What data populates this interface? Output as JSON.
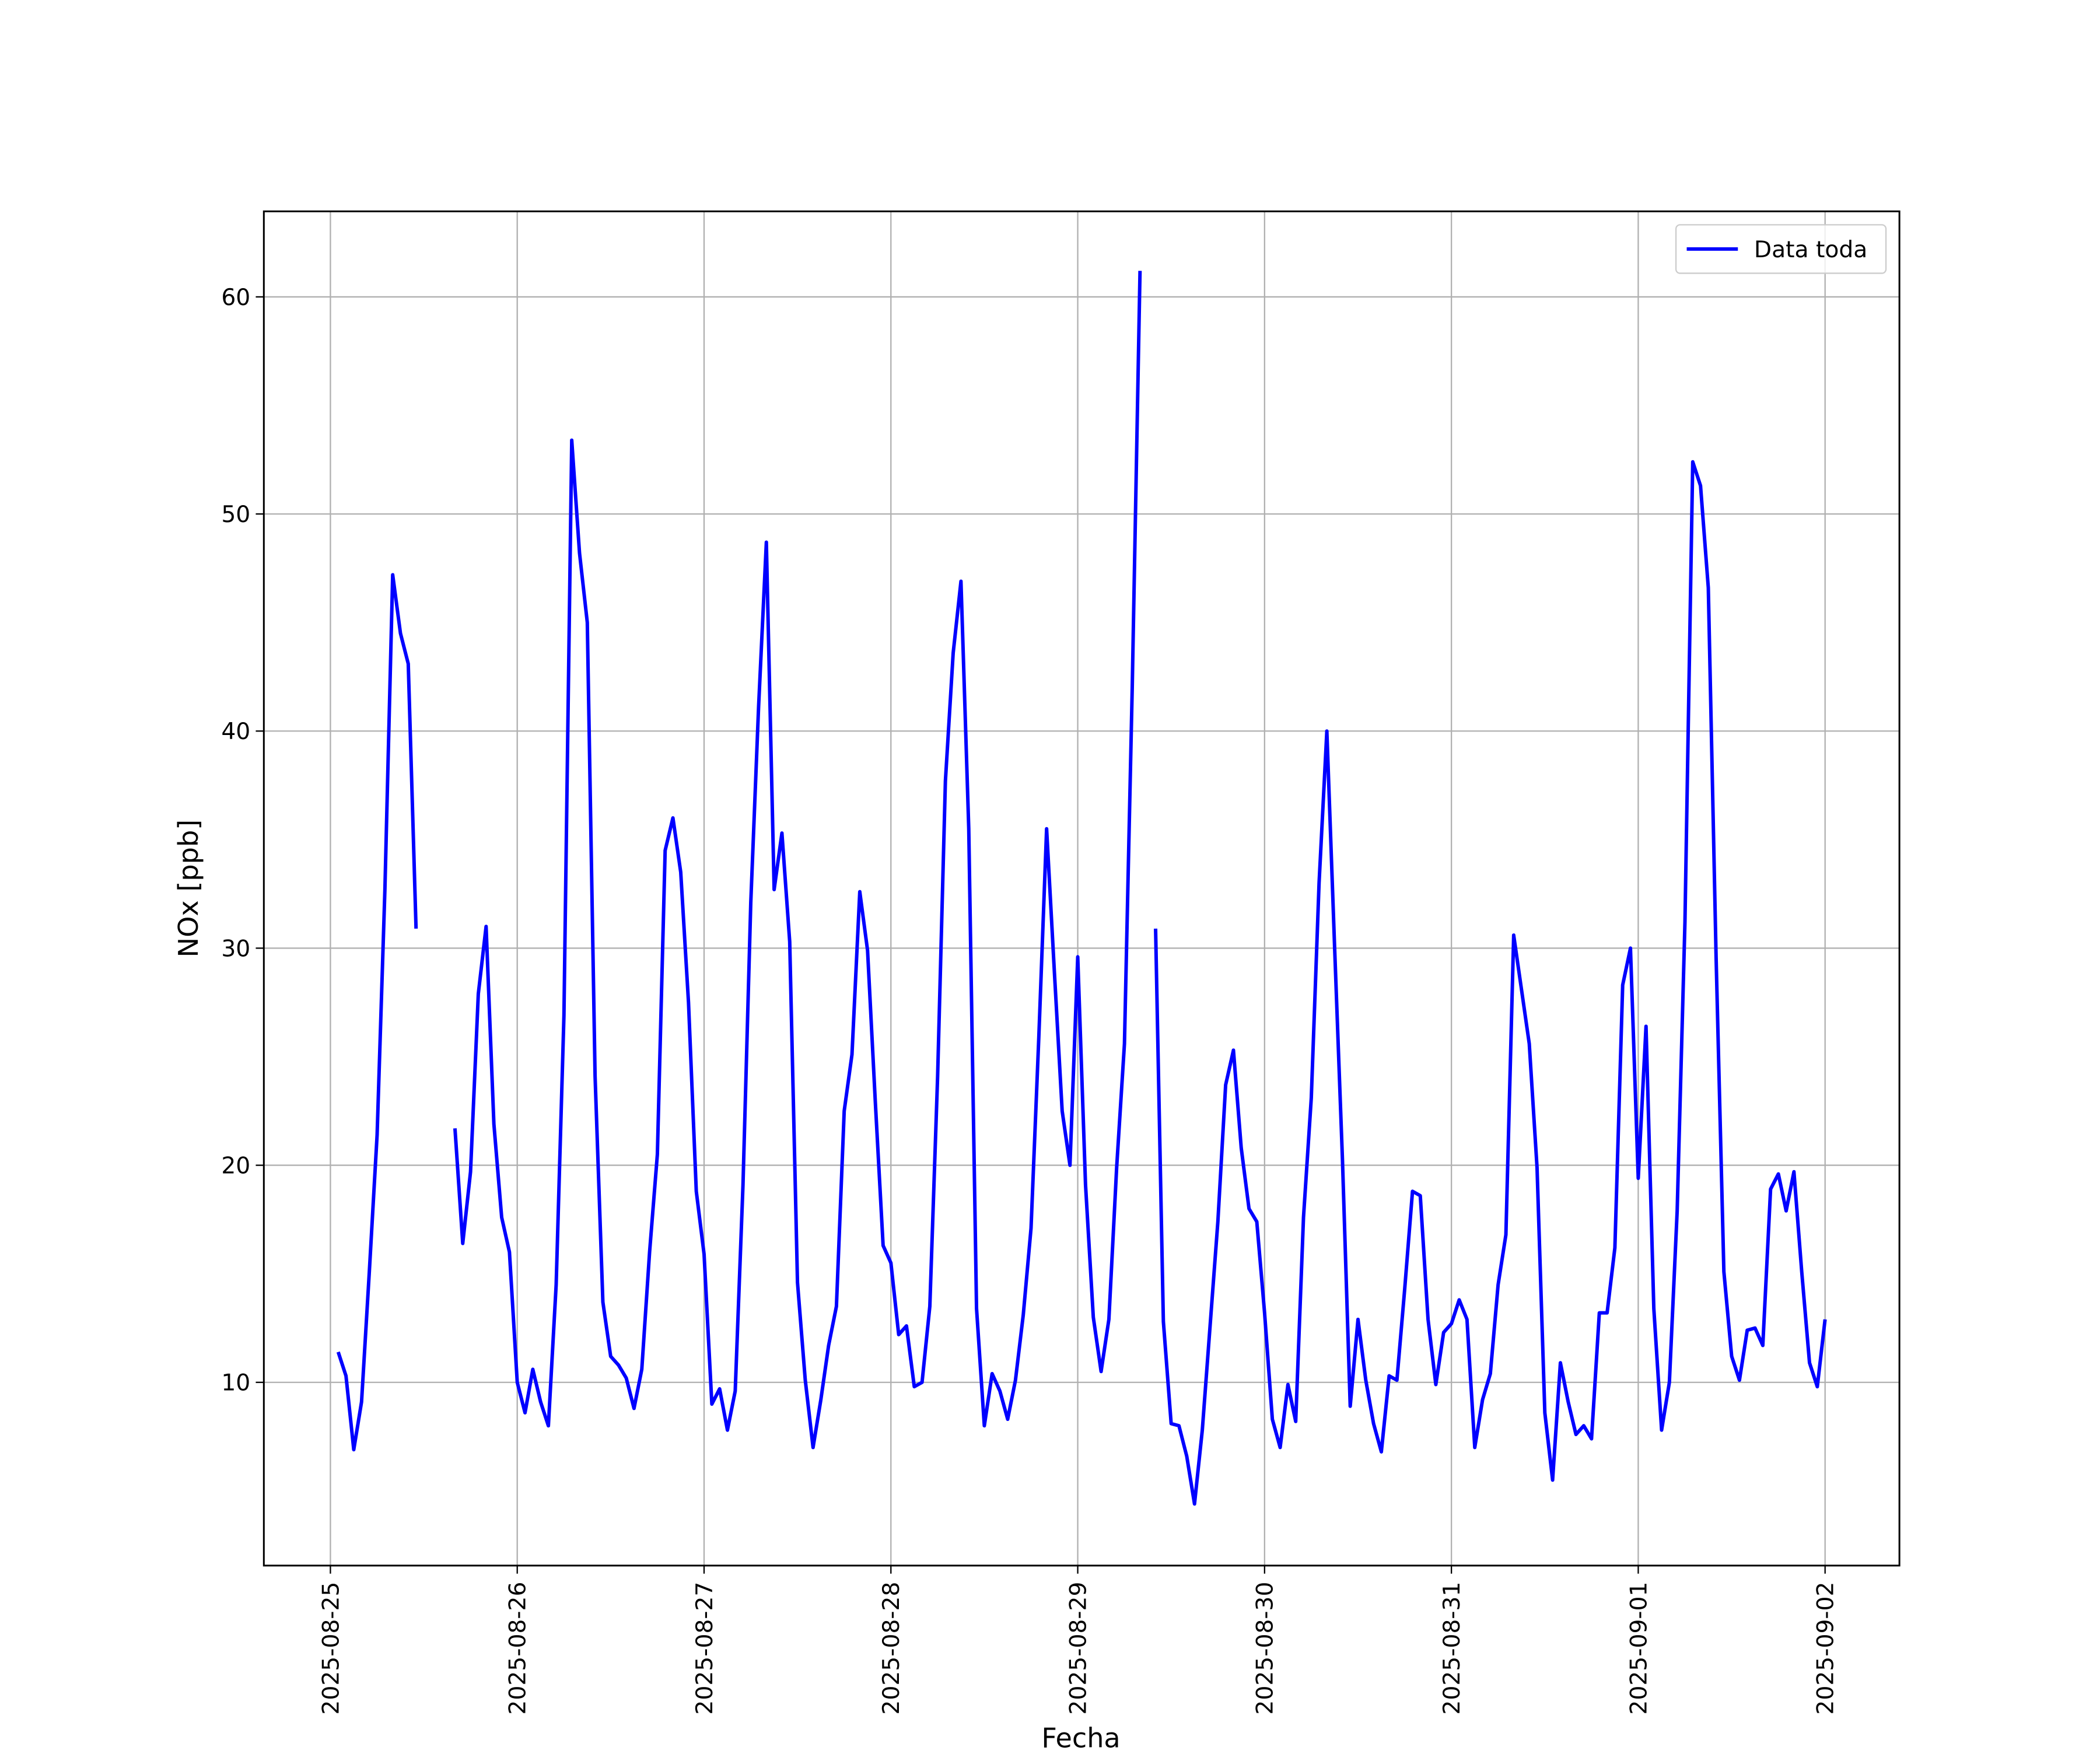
{
  "chart_data": {
    "type": "line",
    "xlabel": "Fecha",
    "ylabel": "NOx [ppb]",
    "xlim": [
      "2025-08-24 15:27",
      "2025-09-02 09:33"
    ],
    "xticks": [
      "2025-08-25",
      "2025-08-26",
      "2025-08-27",
      "2025-08-28",
      "2025-08-29",
      "2025-08-30",
      "2025-08-31",
      "2025-09-01",
      "2025-09-02"
    ],
    "ylim": [
      1.56,
      63.94
    ],
    "yticks": [
      10,
      20,
      30,
      40,
      50,
      60
    ],
    "grid": true,
    "legend": "upper right",
    "x": [
      "2025-08-25 01:00",
      "2025-08-25 02:00",
      "2025-08-25 03:00",
      "2025-08-25 04:00",
      "2025-08-25 05:00",
      "2025-08-25 06:00",
      "2025-08-25 07:00",
      "2025-08-25 08:00",
      "2025-08-25 09:00",
      "2025-08-25 10:00",
      "2025-08-25 11:00",
      "2025-08-25 12:00",
      "2025-08-25 13:00",
      "2025-08-25 14:00",
      "2025-08-25 15:00",
      "2025-08-25 16:00",
      "2025-08-25 17:00",
      "2025-08-25 18:00",
      "2025-08-25 19:00",
      "2025-08-25 20:00",
      "2025-08-25 21:00",
      "2025-08-25 22:00",
      "2025-08-25 23:00",
      "2025-08-26 00:00",
      "2025-08-26 01:00",
      "2025-08-26 02:00",
      "2025-08-26 03:00",
      "2025-08-26 04:00",
      "2025-08-26 05:00",
      "2025-08-26 06:00",
      "2025-08-26 07:00",
      "2025-08-26 08:00",
      "2025-08-26 09:00",
      "2025-08-26 10:00",
      "2025-08-26 11:00",
      "2025-08-26 12:00",
      "2025-08-26 13:00",
      "2025-08-26 14:00",
      "2025-08-26 15:00",
      "2025-08-26 16:00",
      "2025-08-26 17:00",
      "2025-08-26 18:00",
      "2025-08-26 19:00",
      "2025-08-26 20:00",
      "2025-08-26 21:00",
      "2025-08-26 22:00",
      "2025-08-26 23:00",
      "2025-08-27 00:00",
      "2025-08-27 01:00",
      "2025-08-27 02:00",
      "2025-08-27 03:00",
      "2025-08-27 04:00",
      "2025-08-27 05:00",
      "2025-08-27 06:00",
      "2025-08-27 07:00",
      "2025-08-27 08:00",
      "2025-08-27 09:00",
      "2025-08-27 10:00",
      "2025-08-27 11:00",
      "2025-08-27 12:00",
      "2025-08-27 13:00",
      "2025-08-27 14:00",
      "2025-08-27 15:00",
      "2025-08-27 16:00",
      "2025-08-27 17:00",
      "2025-08-27 18:00",
      "2025-08-27 19:00",
      "2025-08-27 20:00",
      "2025-08-27 21:00",
      "2025-08-27 22:00",
      "2025-08-27 23:00",
      "2025-08-28 00:00",
      "2025-08-28 01:00",
      "2025-08-28 02:00",
      "2025-08-28 03:00",
      "2025-08-28 04:00",
      "2025-08-28 05:00",
      "2025-08-28 06:00",
      "2025-08-28 07:00",
      "2025-08-28 08:00",
      "2025-08-28 09:00",
      "2025-08-28 10:00",
      "2025-08-28 11:00",
      "2025-08-28 12:00",
      "2025-08-28 13:00",
      "2025-08-28 14:00",
      "2025-08-28 15:00",
      "2025-08-28 16:00",
      "2025-08-28 17:00",
      "2025-08-28 18:00",
      "2025-08-28 19:00",
      "2025-08-28 20:00",
      "2025-08-28 21:00",
      "2025-08-28 22:00",
      "2025-08-28 23:00",
      "2025-08-29 00:00",
      "2025-08-29 01:00",
      "2025-08-29 02:00",
      "2025-08-29 03:00",
      "2025-08-29 04:00",
      "2025-08-29 05:00",
      "2025-08-29 06:00",
      "2025-08-29 07:00",
      "2025-08-29 08:00",
      "2025-08-29 09:00",
      "2025-08-29 10:00",
      "2025-08-29 11:00",
      "2025-08-29 12:00",
      "2025-08-29 13:00",
      "2025-08-29 14:00",
      "2025-08-29 15:00",
      "2025-08-29 16:00",
      "2025-08-29 17:00",
      "2025-08-29 18:00",
      "2025-08-29 19:00",
      "2025-08-29 20:00",
      "2025-08-29 21:00",
      "2025-08-29 22:00",
      "2025-08-29 23:00",
      "2025-08-30 00:00",
      "2025-08-30 01:00",
      "2025-08-30 02:00",
      "2025-08-30 03:00",
      "2025-08-30 04:00",
      "2025-08-30 05:00",
      "2025-08-30 06:00",
      "2025-08-30 07:00",
      "2025-08-30 08:00",
      "2025-08-30 09:00",
      "2025-08-30 10:00",
      "2025-08-30 11:00",
      "2025-08-30 12:00",
      "2025-08-30 13:00",
      "2025-08-30 14:00",
      "2025-08-30 15:00",
      "2025-08-30 16:00",
      "2025-08-30 17:00",
      "2025-08-30 18:00",
      "2025-08-30 19:00",
      "2025-08-30 20:00",
      "2025-08-30 21:00",
      "2025-08-30 22:00",
      "2025-08-30 23:00",
      "2025-08-31 00:00",
      "2025-08-31 01:00",
      "2025-08-31 02:00",
      "2025-08-31 03:00",
      "2025-08-31 04:00",
      "2025-08-31 05:00",
      "2025-08-31 06:00",
      "2025-08-31 07:00",
      "2025-08-31 08:00",
      "2025-08-31 09:00",
      "2025-08-31 10:00",
      "2025-08-31 11:00",
      "2025-08-31 12:00",
      "2025-08-31 13:00",
      "2025-08-31 14:00",
      "2025-08-31 15:00",
      "2025-08-31 16:00",
      "2025-08-31 17:00",
      "2025-08-31 18:00",
      "2025-08-31 19:00",
      "2025-08-31 20:00",
      "2025-08-31 21:00",
      "2025-08-31 22:00",
      "2025-08-31 23:00",
      "2025-09-01 00:00",
      "2025-09-01 01:00",
      "2025-09-01 02:00",
      "2025-09-01 03:00",
      "2025-09-01 04:00",
      "2025-09-01 05:00",
      "2025-09-01 06:00",
      "2025-09-01 07:00",
      "2025-09-01 08:00",
      "2025-09-01 09:00",
      "2025-09-01 10:00",
      "2025-09-01 11:00",
      "2025-09-01 12:00",
      "2025-09-01 13:00",
      "2025-09-01 14:00",
      "2025-09-01 15:00",
      "2025-09-01 16:00",
      "2025-09-01 17:00",
      "2025-09-01 18:00",
      "2025-09-01 19:00",
      "2025-09-01 20:00",
      "2025-09-01 21:00",
      "2025-09-01 22:00",
      "2025-09-01 23:00",
      "2025-09-02 00:00"
    ],
    "series": [
      {
        "name": "Data toda",
        "color": "#0000ff",
        "values": [
          11.4,
          10.3,
          6.9,
          9.1,
          15.1,
          21.4,
          32.7,
          47.2,
          44.5,
          43.1,
          30.9,
          null,
          null,
          null,
          null,
          21.7,
          16.4,
          19.7,
          27.9,
          31.0,
          21.9,
          17.6,
          16.0,
          10.0,
          8.6,
          10.6,
          9.1,
          8.0,
          14.5,
          26.9,
          53.4,
          48.2,
          45.0,
          24.1,
          13.7,
          11.2,
          10.8,
          10.2,
          8.8,
          10.6,
          16.0,
          20.5,
          34.5,
          36.0,
          33.5,
          27.5,
          18.8,
          15.9,
          9.0,
          9.7,
          7.8,
          9.6,
          19.1,
          32.1,
          41.1,
          48.7,
          32.7,
          35.3,
          30.3,
          14.6,
          10.1,
          7.0,
          9.2,
          11.7,
          13.5,
          22.5,
          25.1,
          32.6,
          29.9,
          22.9,
          16.3,
          15.5,
          12.2,
          12.6,
          9.8,
          10.0,
          13.5,
          24.1,
          37.7,
          43.6,
          46.9,
          35.5,
          13.4,
          8.0,
          10.4,
          9.6,
          8.3,
          10.1,
          13.1,
          17.1,
          25.9,
          35.5,
          28.9,
          22.5,
          20.0,
          29.6,
          19.1,
          13.0,
          10.5,
          12.9,
          19.9,
          25.6,
          42.0,
          61.2,
          null,
          30.9,
          12.8,
          8.1,
          8.0,
          6.6,
          4.4,
          7.8,
          12.6,
          17.4,
          23.7,
          25.3,
          20.8,
          18.0,
          17.4,
          13.2,
          8.3,
          7.0,
          9.9,
          8.2,
          17.6,
          23.1,
          33.0,
          40.0,
          30.0,
          20.3,
          8.9,
          12.9,
          10.1,
          8.1,
          6.8,
          10.3,
          10.1,
          14.3,
          18.8,
          18.6,
          12.9,
          9.9,
          12.3,
          12.7,
          13.8,
          12.9,
          7.0,
          9.2,
          10.4,
          14.5,
          16.8,
          30.6,
          28.1,
          25.6,
          19.9,
          8.6,
          5.5,
          10.9,
          9.1,
          7.6,
          8.0,
          7.4,
          13.2,
          13.2,
          16.2,
          28.3,
          30.0,
          19.4,
          26.4,
          13.4,
          7.8,
          10.0,
          17.9,
          31.2,
          52.4,
          51.3,
          46.6,
          29.6,
          15.1,
          11.2,
          10.1,
          12.4,
          12.5,
          11.7,
          18.9,
          19.6,
          17.9,
          19.7,
          15.1,
          10.9,
          9.8,
          12.9
        ]
      }
    ]
  }
}
